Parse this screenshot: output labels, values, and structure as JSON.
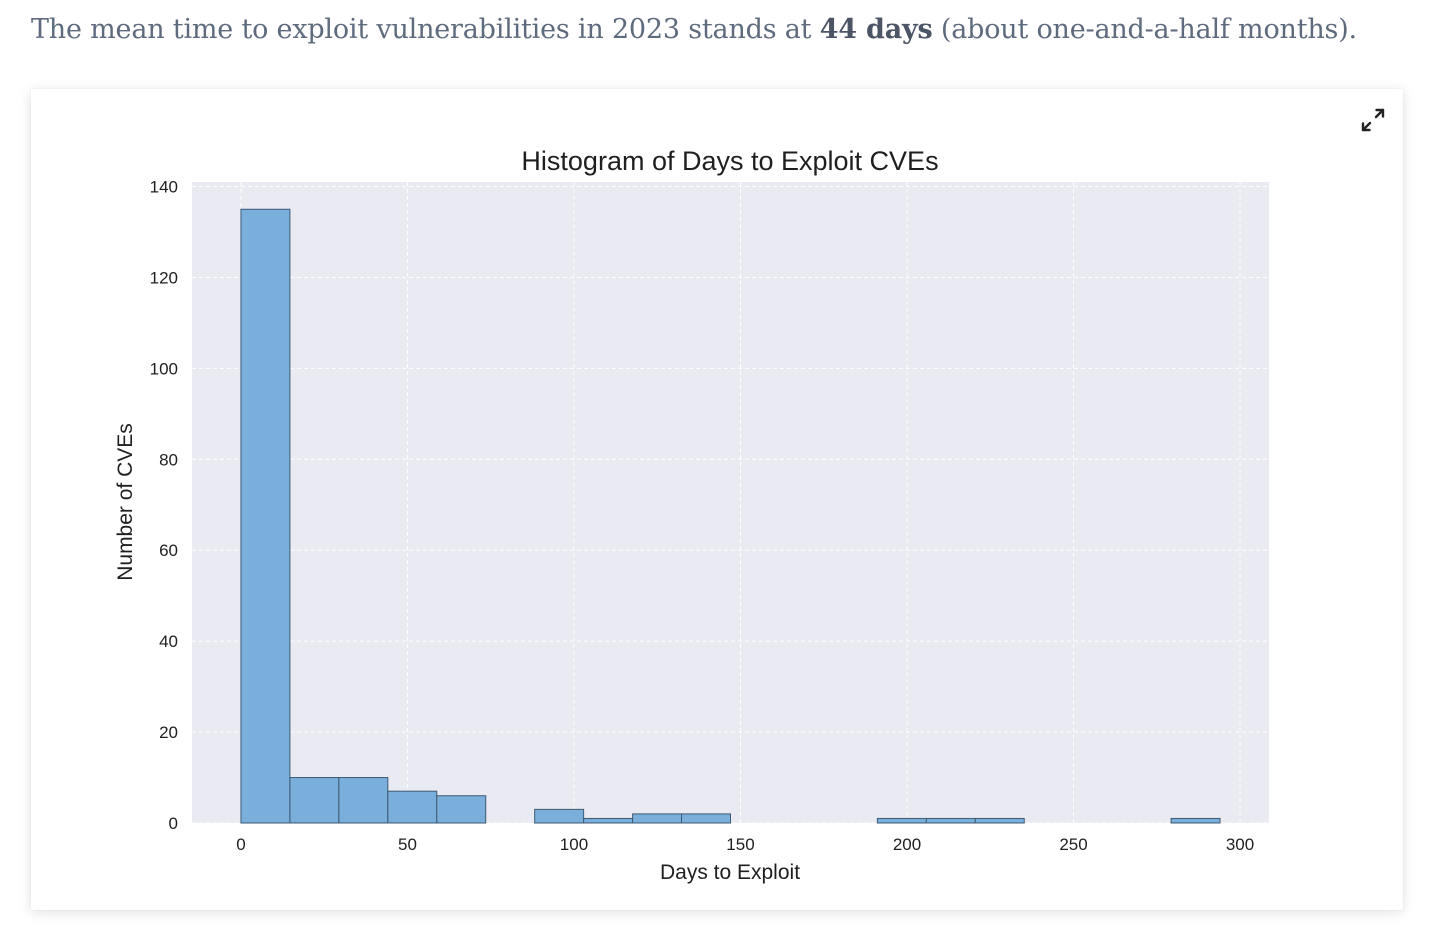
{
  "intro": {
    "prefix": "The mean time to exploit vulnerabilities in 2023 stands at ",
    "highlight": "44 days",
    "suffix": " (about one-and-a-half months)."
  },
  "card": {
    "expand_icon": "expand-arrows-icon"
  },
  "chart_data": {
    "type": "bar",
    "subtype": "histogram",
    "title": "Histogram of Days to Exploit CVEs",
    "xlabel": "Days to Exploit",
    "ylabel": "Number of CVEs",
    "xlim": [
      -14.7,
      308.7
    ],
    "ylim": [
      0,
      141
    ],
    "xticks": [
      0,
      50,
      100,
      150,
      200,
      250,
      300
    ],
    "yticks": [
      0,
      20,
      40,
      60,
      80,
      100,
      120,
      140
    ],
    "grid": true,
    "bins": [
      {
        "start": 0.0,
        "end": 14.7,
        "count": 135
      },
      {
        "start": 14.7,
        "end": 29.4,
        "count": 10
      },
      {
        "start": 29.4,
        "end": 44.1,
        "count": 10
      },
      {
        "start": 44.1,
        "end": 58.8,
        "count": 7
      },
      {
        "start": 58.8,
        "end": 73.5,
        "count": 6
      },
      {
        "start": 73.5,
        "end": 88.2,
        "count": 0
      },
      {
        "start": 88.2,
        "end": 102.9,
        "count": 3
      },
      {
        "start": 102.9,
        "end": 117.6,
        "count": 1
      },
      {
        "start": 117.6,
        "end": 132.3,
        "count": 2
      },
      {
        "start": 132.3,
        "end": 147.0,
        "count": 2
      },
      {
        "start": 147.0,
        "end": 161.7,
        "count": 0
      },
      {
        "start": 161.7,
        "end": 176.4,
        "count": 0
      },
      {
        "start": 176.4,
        "end": 191.1,
        "count": 0
      },
      {
        "start": 191.1,
        "end": 205.8,
        "count": 1
      },
      {
        "start": 205.8,
        "end": 220.5,
        "count": 1
      },
      {
        "start": 220.5,
        "end": 235.2,
        "count": 1
      },
      {
        "start": 235.2,
        "end": 249.9,
        "count": 0
      },
      {
        "start": 249.9,
        "end": 264.6,
        "count": 0
      },
      {
        "start": 264.6,
        "end": 279.3,
        "count": 0
      },
      {
        "start": 279.3,
        "end": 294.0,
        "count": 1
      }
    ],
    "colors": {
      "bar_fill": "#7aaedb",
      "bar_edge": "#3d5a73",
      "plot_bg": "#eaeaf2",
      "grid": "#ffffff"
    }
  }
}
